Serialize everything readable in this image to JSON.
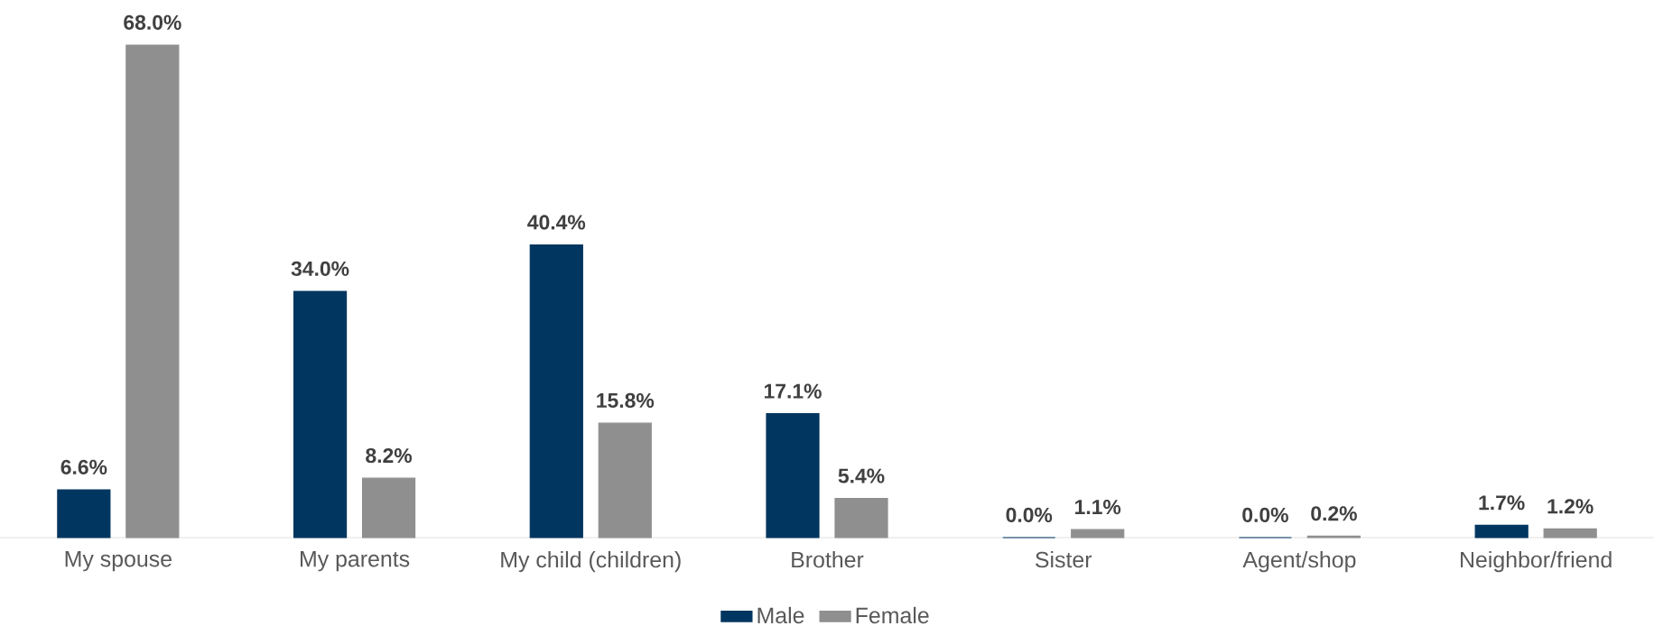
{
  "chart_data": {
    "type": "bar",
    "categories": [
      "My spouse",
      "My parents",
      "My child (children)",
      "Brother",
      "Sister",
      "Agent/shop",
      "Neighbor/friend"
    ],
    "series": [
      {
        "name": "Male",
        "color": "#003660",
        "values": [
          6.6,
          34.0,
          40.4,
          17.1,
          0.0,
          0.0,
          1.7
        ],
        "value_labels": [
          "6.6%",
          "34.0%",
          "40.4%",
          "17.1%",
          "0.0%",
          "0.0%",
          "1.7%"
        ]
      },
      {
        "name": "Female",
        "color": "#8f8f8f",
        "values": [
          68.0,
          8.2,
          15.8,
          5.4,
          1.1,
          0.2,
          1.2
        ],
        "value_labels": [
          "68.0%",
          "8.2%",
          "15.8%",
          "5.4%",
          "1.1%",
          "0.2%",
          "1.2%"
        ]
      }
    ],
    "legend": "bottom"
  }
}
